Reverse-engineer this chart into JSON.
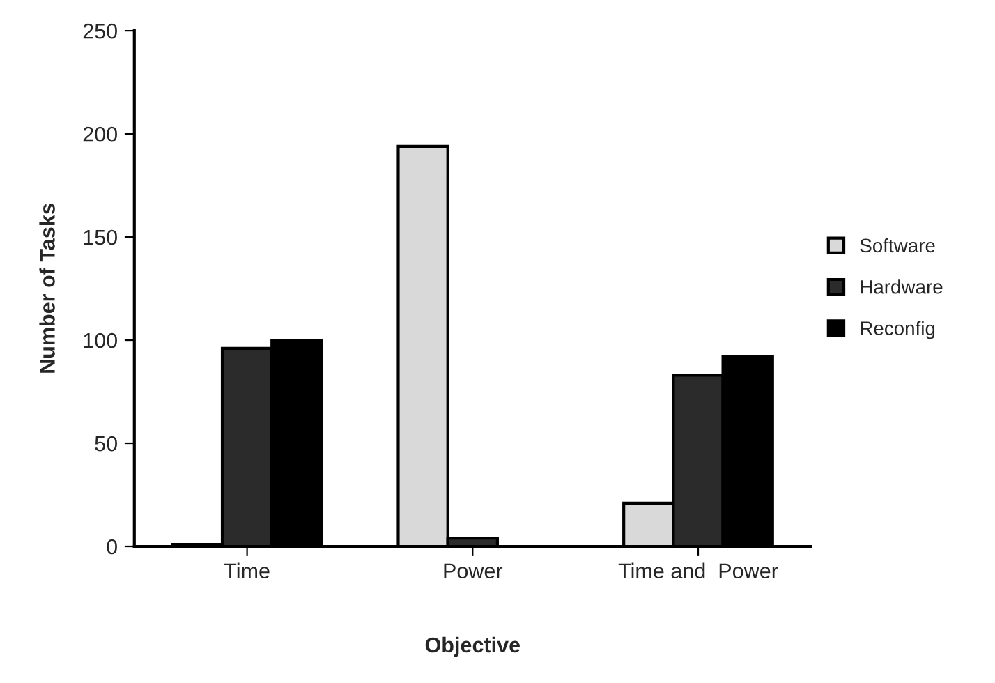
{
  "chart_data": {
    "type": "bar",
    "xlabel": "Objective",
    "ylabel": "Number of Tasks",
    "categories": [
      "Time",
      "Power",
      "Time and  Power"
    ],
    "series": [
      {
        "name": "Software",
        "color": "#d9d9d9",
        "values": [
          1,
          194,
          21
        ]
      },
      {
        "name": "Hardware",
        "color": "#2b2b2b",
        "values": [
          96,
          4,
          83
        ]
      },
      {
        "name": "Reconfig",
        "color": "#000000",
        "values": [
          100,
          0,
          92
        ]
      }
    ],
    "ylim": [
      0,
      250
    ],
    "yticks": [
      0,
      50,
      100,
      150,
      200,
      250
    ],
    "grid": false,
    "legend": "right"
  }
}
